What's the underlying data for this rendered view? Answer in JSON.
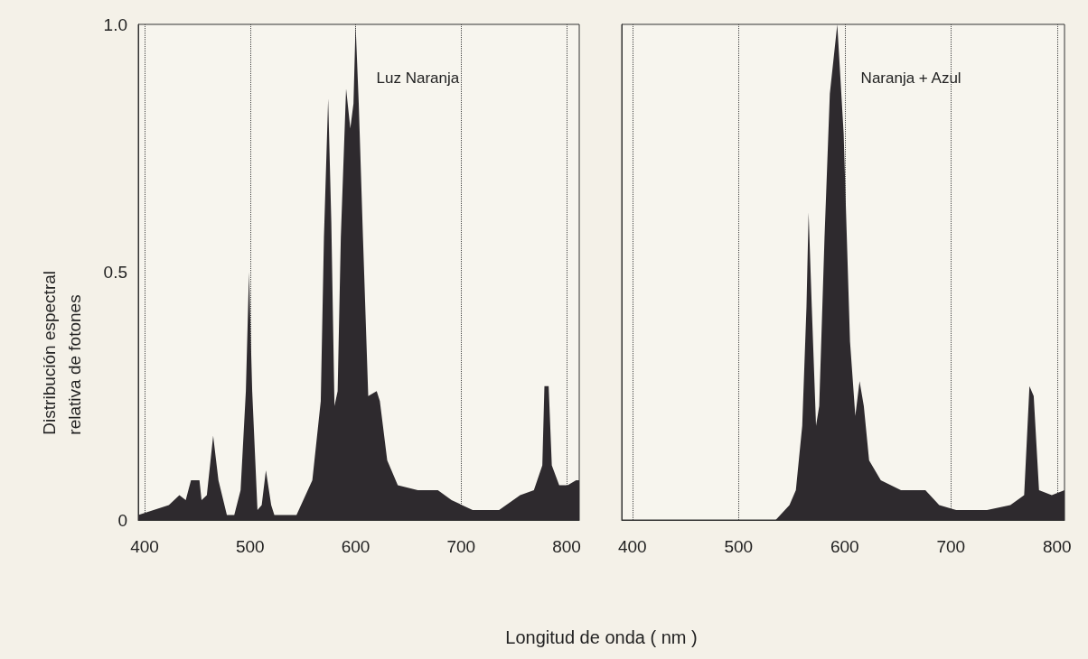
{
  "chart_data": [
    {
      "type": "area",
      "title": "Luz Naranja",
      "xlabel": "Longitud de onda ( nm )",
      "ylabel": "Distribución espectral\nrelativa de fotones",
      "series": [
        {
          "color": "#2e2a2e",
          "x": [
            394,
            423,
            433,
            439,
            444,
            452,
            454,
            459,
            465,
            470,
            478,
            485,
            491,
            496,
            499,
            502,
            507,
            511,
            515,
            520,
            523,
            544,
            559,
            567,
            570,
            574,
            577,
            580,
            583,
            586,
            591,
            595,
            598,
            600,
            603,
            607,
            612,
            620,
            623,
            630,
            640,
            659,
            678,
            691,
            711,
            727,
            736,
            756,
            769,
            777,
            779,
            783,
            786,
            793,
            801,
            809,
            812
          ],
          "values": [
            0.01,
            0.03,
            0.05,
            0.04,
            0.08,
            0.08,
            0.04,
            0.05,
            0.17,
            0.08,
            0.01,
            0.01,
            0.06,
            0.26,
            0.5,
            0.26,
            0.02,
            0.03,
            0.1,
            0.03,
            0.01,
            0.01,
            0.08,
            0.24,
            0.57,
            0.85,
            0.6,
            0.23,
            0.26,
            0.57,
            0.87,
            0.79,
            0.84,
            1.0,
            0.84,
            0.57,
            0.25,
            0.26,
            0.24,
            0.12,
            0.07,
            0.06,
            0.06,
            0.04,
            0.02,
            0.02,
            0.02,
            0.05,
            0.06,
            0.11,
            0.27,
            0.27,
            0.11,
            0.07,
            0.07,
            0.08,
            0.08
          ]
        }
      ],
      "xlim": [
        394,
        812
      ],
      "xticks": [
        400,
        500,
        600,
        700,
        800
      ],
      "ylim": [
        0,
        1
      ],
      "yticks": [
        0,
        0.5,
        {
          "value": 1,
          "label": "1.0"
        }
      ],
      "grid": "x"
    },
    {
      "type": "area",
      "title": "Naranja + Azul",
      "series": [
        {
          "color": "#2e2a2e",
          "x": [
            390,
            535,
            548,
            554,
            560,
            564,
            566,
            569,
            573,
            576,
            581,
            586,
            593,
            599,
            605,
            610,
            614,
            618,
            623,
            634,
            653,
            669,
            676,
            689,
            705,
            734,
            756,
            769,
            774,
            778,
            783,
            795,
            807
          ],
          "values": [
            0,
            0,
            0.03,
            0.06,
            0.19,
            0.43,
            0.62,
            0.43,
            0.19,
            0.23,
            0.57,
            0.86,
            1.0,
            0.78,
            0.36,
            0.21,
            0.28,
            0.23,
            0.12,
            0.08,
            0.06,
            0.06,
            0.06,
            0.03,
            0.02,
            0.02,
            0.03,
            0.05,
            0.27,
            0.25,
            0.06,
            0.05,
            0.06
          ]
        }
      ],
      "xlim": [
        390,
        807
      ],
      "xticks": [
        400,
        500,
        600,
        700,
        800
      ],
      "ylim": [
        0,
        1
      ],
      "grid": "x",
      "tick_labels": "x"
    }
  ]
}
